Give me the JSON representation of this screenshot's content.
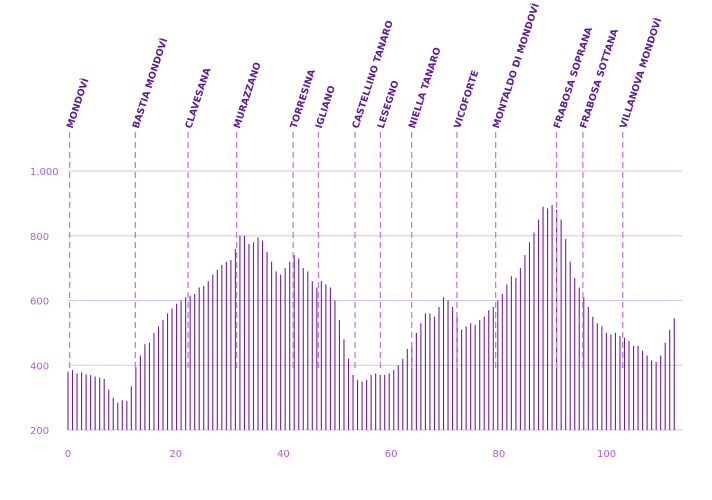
{
  "chart_data": {
    "type": "bar",
    "title": "",
    "xlabel": "",
    "ylabel": "",
    "xlim": [
      0,
      114
    ],
    "ylim": [
      200,
      1100
    ],
    "x_ticks": [
      {
        "value": 0,
        "label": "0"
      },
      {
        "value": 20,
        "label": "20"
      },
      {
        "value": 40,
        "label": "40"
      },
      {
        "value": 60,
        "label": "60"
      },
      {
        "value": 80,
        "label": "80"
      },
      {
        "value": 100,
        "label": "100"
      }
    ],
    "y_ticks": [
      {
        "value": 200,
        "label": "200"
      },
      {
        "value": 400,
        "label": "400"
      },
      {
        "value": 600,
        "label": "600"
      },
      {
        "value": 800,
        "label": "800"
      },
      {
        "value": 1000,
        "label": "1.000"
      }
    ],
    "grid": true,
    "values": [
      380,
      385,
      375,
      378,
      372,
      370,
      365,
      362,
      358,
      325,
      300,
      285,
      292,
      290,
      335,
      395,
      430,
      465,
      470,
      500,
      520,
      540,
      560,
      575,
      590,
      600,
      610,
      615,
      620,
      640,
      645,
      660,
      680,
      695,
      710,
      720,
      725,
      760,
      800,
      800,
      775,
      780,
      795,
      785,
      750,
      720,
      690,
      680,
      700,
      720,
      740,
      730,
      700,
      690,
      660,
      640,
      660,
      650,
      640,
      600,
      540,
      480,
      420,
      370,
      355,
      350,
      355,
      370,
      375,
      370,
      370,
      375,
      385,
      400,
      420,
      450,
      470,
      500,
      530,
      560,
      560,
      550,
      580,
      610,
      600,
      580,
      550,
      510,
      520,
      530,
      525,
      540,
      550,
      570,
      580,
      600,
      620,
      650,
      675,
      670,
      700,
      740,
      780,
      810,
      850,
      890,
      885,
      895,
      880,
      850,
      790,
      720,
      670,
      640,
      610,
      580,
      550,
      530,
      520,
      500,
      495,
      500,
      490,
      485,
      475,
      460,
      460,
      445,
      430,
      415,
      410,
      430,
      470,
      510,
      545
    ],
    "x_start": 0,
    "x_step": 0.84,
    "markers": [
      {
        "x": 0.3,
        "label": "MONDOVÌ"
      },
      {
        "x": 12.5,
        "label": "BASTIA MONDOVÌ"
      },
      {
        "x": 22.3,
        "label": "CLAVESANA"
      },
      {
        "x": 31.3,
        "label": "MURAZZANO"
      },
      {
        "x": 41.8,
        "label": "TORRESINA"
      },
      {
        "x": 46.5,
        "label": "IGLIANO"
      },
      {
        "x": 53.3,
        "label": "CASTELLINO TANARO"
      },
      {
        "x": 58.0,
        "label": "LESEGNO"
      },
      {
        "x": 63.8,
        "label": "NIELLA TANARO"
      },
      {
        "x": 72.2,
        "label": "VICOFORTE"
      },
      {
        "x": 79.4,
        "label": "MONTALDO DI MONDOVÌ"
      },
      {
        "x": 90.7,
        "label": "FRABOSA SOPRANA"
      },
      {
        "x": 95.6,
        "label": "FRABOSA SOTTANA"
      },
      {
        "x": 103.0,
        "label": "VILLANOVA MONDOVÌ"
      }
    ]
  }
}
